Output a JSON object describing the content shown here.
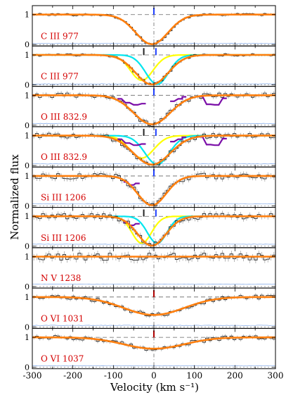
{
  "figure": {
    "ylabel": "Normalized flux",
    "xlabel": "Velocity (km s⁻¹)"
  },
  "colors": {
    "axis": "#000000",
    "data": "#111111",
    "errorbar": "#888888",
    "model": "#ff7f0e",
    "component_broad": "#ffff00",
    "component_narrow": "#00e5ee",
    "blend": "#7b0fa8",
    "error_spectrum": "#7ea6e6",
    "dashed_ref": "#666666",
    "marker_blue": "#1f3fff",
    "marker_black": "#222222",
    "marker_red": "#b00000",
    "label": "#d40000"
  },
  "chart_data": [
    {
      "type": "line",
      "label": "C III 977",
      "x_range": [
        -300,
        300
      ],
      "y_ticks": [
        0,
        1
      ],
      "ylim": [
        -0.05,
        1.3
      ],
      "center": -5,
      "depth": 0.99,
      "width": 40,
      "markers": [
        {
          "v": 0,
          "color": "marker_blue"
        }
      ],
      "components": [],
      "blends": [],
      "noise": 0.04
    },
    {
      "type": "line",
      "label": "C III 977",
      "x_range": [
        -300,
        300
      ],
      "y_ticks": [
        0,
        1
      ],
      "ylim": [
        -0.05,
        1.3
      ],
      "center": -5,
      "depth": 0.99,
      "width": 40,
      "markers": [
        {
          "v": -25,
          "color": "marker_black"
        },
        {
          "v": 5,
          "color": "marker_blue"
        }
      ],
      "components": [
        {
          "center": -30,
          "depth": 0.85,
          "width": 28,
          "color": "component_broad"
        },
        {
          "center": 8,
          "depth": 0.98,
          "width": 28,
          "color": "component_narrow"
        }
      ],
      "blends": [],
      "noise": 0.04
    },
    {
      "type": "line",
      "label": "O III 832.9",
      "x_range": [
        -300,
        300
      ],
      "y_ticks": [
        0,
        1
      ],
      "ylim": [
        -0.05,
        1.3
      ],
      "center": -5,
      "depth": 0.97,
      "width": 45,
      "markers": [
        {
          "v": 0,
          "color": "marker_blue"
        }
      ],
      "components": [],
      "blends": [
        {
          "x": [
            -90,
            -70,
            -50,
            -30
          ],
          "y": [
            0.88,
            0.75,
            0.68,
            0.72
          ]
        },
        {
          "x": [
            40,
            60,
            70
          ],
          "y": [
            0.8,
            0.88,
            0.95
          ]
        },
        {
          "x": [
            110,
            130,
            150,
            170
          ],
          "y": [
            0.96,
            0.7,
            0.68,
            0.9
          ]
        }
      ],
      "noise": 0.08
    },
    {
      "type": "line",
      "label": "O III 832.9",
      "x_range": [
        -300,
        300
      ],
      "y_ticks": [
        0,
        1
      ],
      "ylim": [
        -0.05,
        1.3
      ],
      "center": -5,
      "depth": 0.97,
      "width": 45,
      "markers": [
        {
          "v": -25,
          "color": "marker_black"
        },
        {
          "v": 5,
          "color": "marker_blue"
        }
      ],
      "components": [
        {
          "center": -30,
          "depth": 0.75,
          "width": 30,
          "color": "component_broad"
        },
        {
          "center": 8,
          "depth": 0.96,
          "width": 30,
          "color": "component_narrow"
        }
      ],
      "blends": [
        {
          "x": [
            -90,
            -70,
            -50,
            -30
          ],
          "y": [
            0.88,
            0.75,
            0.68,
            0.72
          ]
        },
        {
          "x": [
            40,
            60,
            70
          ],
          "y": [
            0.8,
            0.88,
            0.95
          ]
        },
        {
          "x": [
            110,
            130,
            150,
            170
          ],
          "y": [
            0.96,
            0.7,
            0.68,
            0.9
          ]
        }
      ],
      "noise": 0.08
    },
    {
      "type": "line",
      "label": "Si III 1206",
      "x_range": [
        -300,
        300
      ],
      "y_ticks": [
        0,
        1
      ],
      "ylim": [
        -0.05,
        1.3
      ],
      "center": -5,
      "depth": 0.98,
      "width": 35,
      "markers": [
        {
          "v": 0,
          "color": "marker_blue"
        }
      ],
      "components": [],
      "blends": [
        {
          "x": [
            -75,
            -60,
            -45
          ],
          "y": [
            0.8,
            0.7,
            0.75
          ]
        }
      ],
      "noise": 0.1
    },
    {
      "type": "line",
      "label": "Si III 1206",
      "x_range": [
        -300,
        300
      ],
      "y_ticks": [
        0,
        1
      ],
      "ylim": [
        -0.05,
        1.3
      ],
      "center": -5,
      "depth": 0.98,
      "width": 35,
      "markers": [
        {
          "v": -25,
          "color": "marker_black"
        },
        {
          "v": 5,
          "color": "marker_blue"
        }
      ],
      "components": [
        {
          "center": -30,
          "depth": 0.9,
          "width": 24,
          "color": "component_broad"
        },
        {
          "center": 8,
          "depth": 0.9,
          "width": 24,
          "color": "component_narrow"
        }
      ],
      "blends": [
        {
          "x": [
            -75,
            -60,
            -45
          ],
          "y": [
            0.8,
            0.7,
            0.75
          ]
        }
      ],
      "noise": 0.1
    },
    {
      "type": "line",
      "label": "N V 1238",
      "x_range": [
        -300,
        300
      ],
      "y_ticks": [
        0,
        1
      ],
      "ylim": [
        -0.05,
        1.3
      ],
      "center": 0,
      "depth": 0.0,
      "width": 40,
      "markers": [],
      "components": [],
      "blends": [],
      "noise": 0.12
    },
    {
      "type": "line",
      "label": "O VI 1031",
      "x_range": [
        -300,
        300
      ],
      "y_ticks": [
        0,
        1
      ],
      "ylim": [
        -0.05,
        1.3
      ],
      "center": 0,
      "depth": 0.6,
      "width": 75,
      "markers": [
        {
          "v": 0,
          "color": "marker_red"
        }
      ],
      "components": [],
      "blends": [],
      "noise": 0.07
    },
    {
      "type": "line",
      "label": "O VI 1037",
      "x_range": [
        -300,
        300
      ],
      "y_ticks": [
        0,
        1
      ],
      "ylim": [
        -0.05,
        1.3
      ],
      "center": 0,
      "depth": 0.38,
      "width": 75,
      "markers": [
        {
          "v": 0,
          "color": "marker_red"
        }
      ],
      "components": [],
      "blends": [],
      "noise": 0.07
    }
  ],
  "x_ticks": [
    -300,
    -200,
    -100,
    0,
    100,
    200,
    300
  ]
}
